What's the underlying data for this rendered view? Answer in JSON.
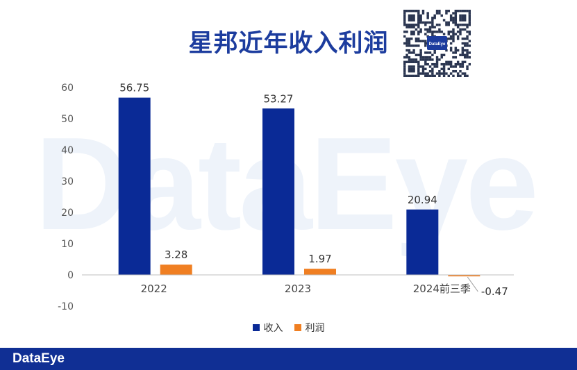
{
  "watermark": "DataEye",
  "title": "星邦近年收入利润",
  "footer": {
    "logo_text": "DataEye"
  },
  "qr": {
    "center_text": "DataEye"
  },
  "colors": {
    "revenue": "#0a2a96",
    "profit": "#f07f22",
    "title": "#1c3c9e",
    "footer": "#102f94"
  },
  "chart_data": {
    "type": "bar",
    "title": "星邦近年收入利润",
    "xlabel": "",
    "ylabel": "",
    "categories": [
      "2022",
      "2023",
      "2024前三季"
    ],
    "series": [
      {
        "name": "收入",
        "values": [
          56.75,
          53.27,
          20.94
        ],
        "labels": [
          "56.75",
          "53.27",
          "20.94"
        ],
        "color": "#0a2a96"
      },
      {
        "name": "利润",
        "values": [
          3.28,
          1.97,
          -0.47
        ],
        "labels": [
          "3.28",
          "1.97",
          "-0.47"
        ],
        "color": "#f07f22"
      }
    ],
    "ylim": [
      -10,
      60
    ],
    "yticks": [
      "-10",
      "0",
      "10",
      "20",
      "30",
      "40",
      "50",
      "60"
    ],
    "grid": false,
    "legend": "bottom"
  }
}
